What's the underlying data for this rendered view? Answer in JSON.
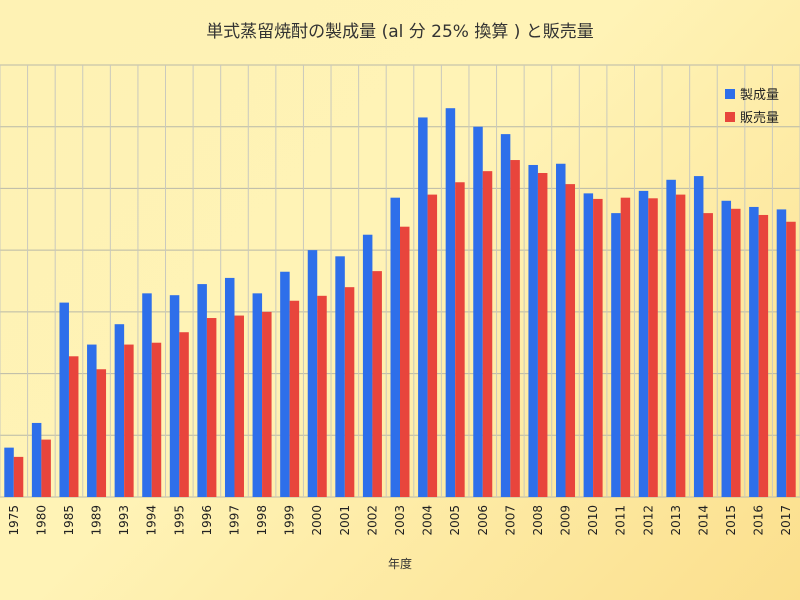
{
  "chart_data": {
    "type": "bar",
    "title": "単式蒸留焼酎の製成量 (al 分 25% 換算 ) と販売量",
    "xlabel": "年度",
    "ylabel": "",
    "categories": [
      "1975",
      "1980",
      "1985",
      "1989",
      "1993",
      "1994",
      "1995",
      "1996",
      "1997",
      "1998",
      "1999",
      "2000",
      "2001",
      "2002",
      "2003",
      "2004",
      "2005",
      "2006",
      "2007",
      "2008",
      "2009",
      "2010",
      "2011",
      "2012",
      "2013",
      "2014",
      "2015",
      "2016",
      "2017"
    ],
    "series": [
      {
        "name": "製成量",
        "color": "#2e6fea",
        "values": [
          80,
          120,
          315,
          247,
          280,
          330,
          327,
          345,
          355,
          330,
          365,
          400,
          390,
          425,
          485,
          615,
          630,
          600,
          588,
          538,
          540,
          492,
          460,
          496,
          514,
          520,
          480,
          470,
          466
        ]
      },
      {
        "name": "販売量",
        "color": "#e8453c",
        "values": [
          65,
          93,
          228,
          207,
          247,
          250,
          267,
          290,
          294,
          300,
          318,
          326,
          340,
          366,
          438,
          490,
          510,
          528,
          546,
          525,
          507,
          483,
          485,
          484,
          490,
          460,
          467,
          457,
          446
        ]
      }
    ],
    "ylim": [
      0,
      700
    ],
    "grid": true,
    "y_tick_labels_visible": false,
    "legend_position": "top-right"
  }
}
